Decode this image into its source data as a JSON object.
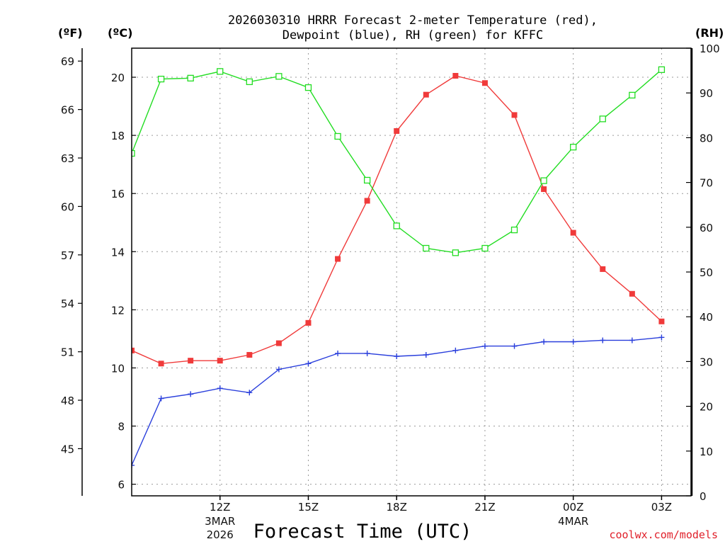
{
  "chart_data": {
    "type": "line",
    "title_line1": "2026030310 HRRR Forecast 2-meter Temperature (red),",
    "title_line2": "Dewpoint (blue), RH (green) for KFFC",
    "xlabel": "Forecast Time (UTC)",
    "credit": "coolwx.com/models",
    "unit_labels": {
      "fahrenheit": "(ºF)",
      "celsius": "(ºC)",
      "rh": "(RH)"
    },
    "x_hours": [
      9,
      10,
      11,
      12,
      13,
      14,
      15,
      16,
      17,
      18,
      19,
      20,
      21,
      22,
      23,
      24,
      25,
      26,
      27,
      28
    ],
    "xlim": [
      9,
      28
    ],
    "x_ticks": [
      {
        "hour": 12,
        "label": "12Z",
        "sub1": "3MAR",
        "sub2": "2026"
      },
      {
        "hour": 15,
        "label": "15Z",
        "sub1": "",
        "sub2": ""
      },
      {
        "hour": 18,
        "label": "18Z",
        "sub1": "",
        "sub2": ""
      },
      {
        "hour": 21,
        "label": "21Z",
        "sub1": "",
        "sub2": ""
      },
      {
        "hour": 24,
        "label": "00Z",
        "sub1": "4MAR",
        "sub2": ""
      },
      {
        "hour": 27,
        "label": "03Z",
        "sub1": "",
        "sub2": ""
      }
    ],
    "celsius_ylim": [
      5.6,
      21.0
    ],
    "celsius_ticks": [
      "6",
      "8",
      "10",
      "12",
      "14",
      "16",
      "18",
      "20"
    ],
    "fahrenheit_ticks": [
      "45",
      "48",
      "51",
      "54",
      "57",
      "60",
      "63",
      "66",
      "69"
    ],
    "rh_ylim": [
      0,
      100
    ],
    "rh_ticks": [
      "0",
      "10",
      "20",
      "30",
      "40",
      "50",
      "60",
      "70",
      "80",
      "90",
      "100"
    ],
    "series": [
      {
        "name": "Temperature",
        "axis": "celsius",
        "color": "#f03a3a",
        "marker": "filled-square",
        "values": [
          10.6,
          10.15,
          10.25,
          10.25,
          10.45,
          10.85,
          11.55,
          13.75,
          15.75,
          18.15,
          19.4,
          20.05,
          19.8,
          18.7,
          16.15,
          14.65,
          13.4,
          12.55,
          11.6
        ]
      },
      {
        "name": "Dewpoint",
        "axis": "celsius",
        "color": "#2a3fdc",
        "marker": "plus",
        "values": [
          6.65,
          8.95,
          9.1,
          9.3,
          9.15,
          9.95,
          10.15,
          10.5,
          10.5,
          10.4,
          10.45,
          10.6,
          10.75,
          10.75,
          10.9,
          10.9,
          10.95,
          10.95,
          11.05
        ]
      },
      {
        "name": "RH",
        "axis": "rh",
        "color": "#22dd22",
        "marker": "open-square",
        "values": [
          76.5,
          93.1,
          93.3,
          94.8,
          92.5,
          93.7,
          91.2,
          80.3,
          70.5,
          60.3,
          55.3,
          54.3,
          55.3,
          59.4,
          70.4,
          77.9,
          84.2,
          89.5,
          95.2
        ]
      }
    ]
  }
}
